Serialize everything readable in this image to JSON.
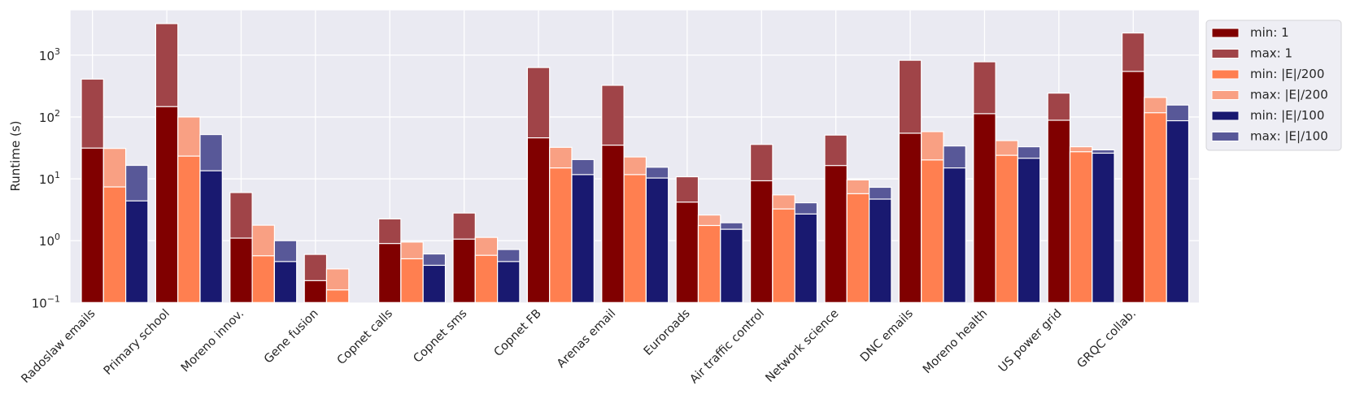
{
  "chart_data": {
    "type": "bar",
    "title": "",
    "xlabel": "",
    "ylabel": "Runtime (s)",
    "yscale": "log",
    "ylim": [
      0.1,
      5300
    ],
    "yticks": [
      {
        "base": "10",
        "exp": "−1",
        "value": 0.1
      },
      {
        "base": "10",
        "exp": "0",
        "value": 1
      },
      {
        "base": "10",
        "exp": "1",
        "value": 10
      },
      {
        "base": "10",
        "exp": "2",
        "value": 100
      },
      {
        "base": "10",
        "exp": "3",
        "value": 1000
      }
    ],
    "grid": true,
    "legend_position": "outside-top-right",
    "categories": [
      "Radoslaw emails",
      "Primary school",
      "Moreno innov.",
      "Gene fusion",
      "Copnet calls",
      "Copnet sms",
      "Copnet FB",
      "Arenas email",
      "Euroroads",
      "Air traffic control",
      "Network science",
      "DNC emails",
      "Moreno health",
      "US power grid",
      "GRQC collab."
    ],
    "groups": [
      {
        "key": "1",
        "min": {
          "name": "min: 1",
          "color": "#800000",
          "values": [
            31.4,
            147,
            1.1,
            0.226,
            0.9,
            1.06,
            46,
            35,
            4.2,
            9.3,
            16.4,
            54.6,
            113,
            88.5,
            545
          ]
        },
        "max": {
          "name": "max: 1",
          "color": "#a04448",
          "values": [
            410,
            3230,
            6.0,
            0.6,
            2.25,
            2.8,
            630,
            325,
            10.8,
            36,
            51,
            826,
            780,
            243,
            2280
          ]
        }
      },
      {
        "key": "|E|/200",
        "min": {
          "name": "min: |E|/200",
          "color": "#ff7f50",
          "values": [
            7.4,
            23.3,
            0.57,
            0.16,
            0.51,
            0.58,
            15,
            11.7,
            1.76,
            3.26,
            5.75,
            20.2,
            24,
            27.4,
            117
          ]
        },
        "max": {
          "name": "max: |E|/200",
          "color": "#f9a083",
          "values": [
            31,
            100,
            1.78,
            0.35,
            0.95,
            1.13,
            32.3,
            22.6,
            2.6,
            5.5,
            9.6,
            58,
            41.5,
            33,
            207
          ]
        }
      },
      {
        "key": "|E|/100",
        "min": {
          "name": "min: |E|/100",
          "color": "#191970",
          "values": [
            4.4,
            13.5,
            0.46,
            null,
            0.4,
            0.46,
            11.7,
            10.3,
            1.53,
            2.7,
            4.7,
            15,
            21.5,
            26,
            87
          ]
        },
        "max": {
          "name": "max: |E|/100",
          "color": "#585898",
          "values": [
            16.5,
            52,
            1.0,
            null,
            0.61,
            0.72,
            20.5,
            15.4,
            1.95,
            4.1,
            7.3,
            34,
            33,
            29.4,
            156
          ]
        }
      }
    ],
    "legend": [
      "min: 1",
      "max: 1",
      "min: |E|/200",
      "max: |E|/200",
      "min: |E|/100",
      "max: |E|/100"
    ]
  },
  "colors": {
    "plot_bg": "#eaeaf2",
    "grid": "#ffffff",
    "bar_edge": "#ffffff"
  }
}
